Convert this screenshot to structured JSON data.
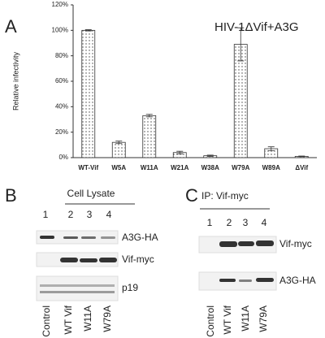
{
  "chart_data": {
    "type": "bar",
    "panel_label": "A",
    "annotation": "HIV-1ΔVif+A3G",
    "y_label": "Relative infectivity",
    "categories": [
      "WT-Vif",
      "W5A",
      "W11A",
      "W21A",
      "W38A",
      "W79A",
      "W89A",
      "ΔVif"
    ],
    "values": [
      100,
      12,
      33,
      4,
      1.5,
      89,
      7,
      1
    ],
    "errors": [
      0.5,
      1,
      1,
      1,
      0.5,
      13,
      1.5,
      0.3
    ],
    "color": "#444444",
    "ylim": [
      0,
      120
    ],
    "yticks": [
      {
        "value": 0,
        "label": "0%"
      },
      {
        "value": 20,
        "label": "20%"
      },
      {
        "value": 40,
        "label": "40%"
      },
      {
        "value": 60,
        "label": "60%"
      },
      {
        "value": 80,
        "label": "80%"
      },
      {
        "value": 100,
        "label": "100%"
      },
      {
        "value": 120,
        "label": "120%"
      }
    ]
  },
  "panel_b": {
    "panel_label": "B",
    "title": "Cell Lysate",
    "lanes": [
      "1",
      "2",
      "3",
      "4"
    ],
    "bands": [
      "A3G-HA",
      "Vif-myc",
      "p19"
    ],
    "samples": [
      "Control",
      "WT Vif",
      "W11A",
      "W79A"
    ]
  },
  "panel_c": {
    "panel_label": "C",
    "title": "IP: Vif-myc",
    "lanes": [
      "1",
      "2",
      "3",
      "4"
    ],
    "bands": [
      "Vif-myc",
      "A3G-HA"
    ],
    "samples": [
      "Control",
      "WT Vif",
      "W11A",
      "W79A"
    ]
  }
}
